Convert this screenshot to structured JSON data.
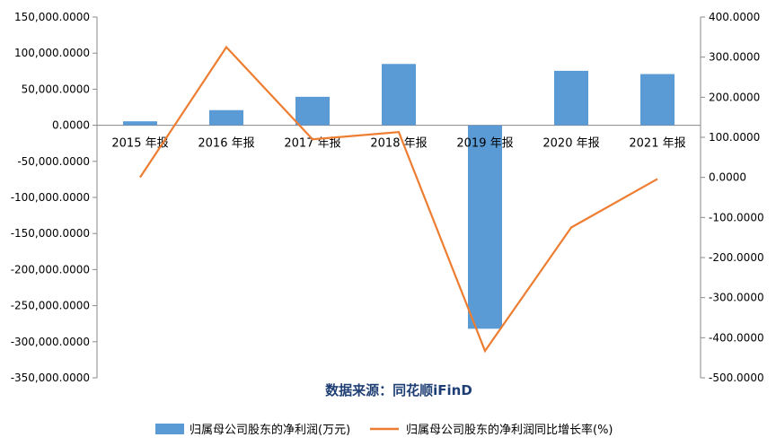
{
  "chart_data": {
    "type": "bar",
    "categories": [
      "2015 年报",
      "2016 年报",
      "2017 年报",
      "2018 年报",
      "2019 年报",
      "2020 年报",
      "2021 年报"
    ],
    "series": [
      {
        "name": "归属母公司股东的净利润(万元)",
        "type": "bar",
        "axis": "left",
        "color": "#5b9bd5",
        "values": [
          5500,
          21000,
          39500,
          85000,
          -282000,
          75500,
          71000
        ]
      },
      {
        "name": "归属母公司股东的净利润同比增长率(%)",
        "type": "line",
        "axis": "right",
        "color": "#ed7d31",
        "values": [
          0,
          325,
          95,
          113,
          -433,
          -125,
          -4
        ]
      }
    ],
    "y_left": {
      "min": -350000,
      "max": 150000,
      "ticks": [
        "150,000.0000",
        "100,000.0000",
        "50,000.0000",
        "0.0000",
        "-50,000.0000",
        "-100,000.0000",
        "-150,000.0000",
        "-200,000.0000",
        "-250,000.0000",
        "-300,000.0000",
        "-350,000.0000"
      ]
    },
    "y_right": {
      "min": -500,
      "max": 400,
      "ticks": [
        "400.0000",
        "300.0000",
        "200.0000",
        "100.0000",
        "0.0000",
        "-100.0000",
        "-200.0000",
        "-300.0000",
        "-400.0000",
        "-500.0000"
      ]
    },
    "grid": false,
    "source": "数据来源：同花顺iFinD",
    "legend_position": "bottom"
  }
}
